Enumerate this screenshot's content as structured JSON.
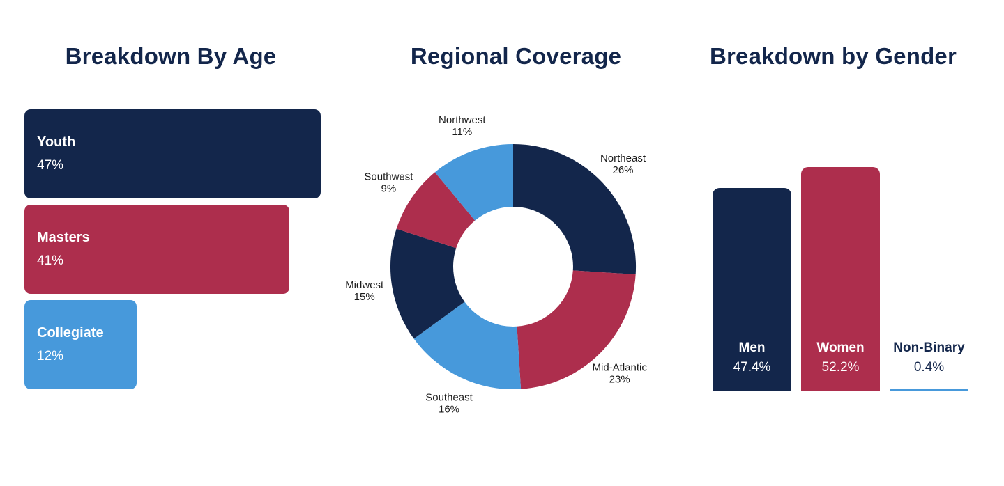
{
  "palette": {
    "navy": "#13264B",
    "crimson": "#AD2E4D",
    "blue": "#4799DB",
    "background": "#FFFFFF",
    "donut_label_color": "#1A1A1A",
    "bar_text_color": "#FFFFFF"
  },
  "chart_data": [
    {
      "id": "age",
      "type": "bar",
      "orientation": "horizontal",
      "title": "Breakdown By Age",
      "categories": [
        "Youth",
        "Masters",
        "Collegiate"
      ],
      "values": [
        47,
        41,
        12
      ],
      "value_labels": [
        "47%",
        "41%",
        "12%"
      ],
      "colors": [
        "#13264B",
        "#AD2E4D",
        "#4799DB"
      ],
      "text_color": "#FFFFFF",
      "xlim": [
        0,
        50
      ],
      "grid": false,
      "legend": "none"
    },
    {
      "id": "region",
      "type": "pie",
      "subtype": "donut",
      "title": "Regional Coverage",
      "categories": [
        "Northeast",
        "Mid-Atlantic",
        "Southeast",
        "Midwest",
        "Southwest",
        "Northwest"
      ],
      "values": [
        26,
        23,
        16,
        15,
        9,
        11
      ],
      "value_labels": [
        "26%",
        "23%",
        "16%",
        "15%",
        "9%",
        "11%"
      ],
      "colors": [
        "#13264B",
        "#AD2E4D",
        "#4799DB",
        "#13264B",
        "#AD2E4D",
        "#4799DB"
      ],
      "start_angle_deg": 0,
      "direction": "clockwise",
      "inner_radius_ratio": 0.49,
      "labels_outside": true,
      "legend": "none"
    },
    {
      "id": "gender",
      "type": "bar",
      "orientation": "vertical",
      "title": "Breakdown by Gender",
      "categories": [
        "Men",
        "Women",
        "Non-Binary"
      ],
      "values": [
        47.4,
        52.2,
        0.4
      ],
      "value_labels": [
        "47.4%",
        "52.2%",
        "0.4%"
      ],
      "colors": [
        "#13264B",
        "#AD2E4D",
        "#4799DB"
      ],
      "label_placement": [
        "inside",
        "inside",
        "above"
      ],
      "ylim": [
        0,
        55
      ],
      "grid": false,
      "legend": "none"
    }
  ]
}
